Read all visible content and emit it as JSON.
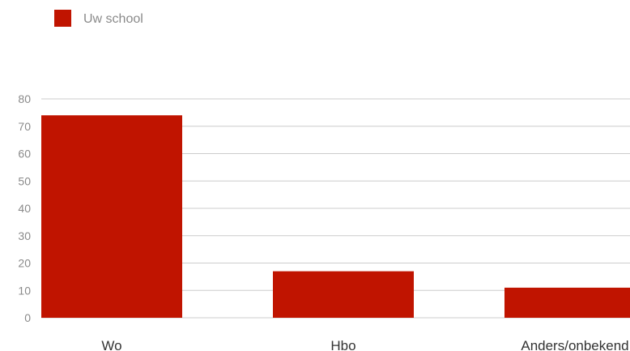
{
  "chart_data": {
    "type": "bar",
    "categories": [
      "Wo",
      "Hbo",
      "Anders/onbekend"
    ],
    "series": [
      {
        "name": "Uw school",
        "values": [
          74,
          17,
          11
        ],
        "color": "#c01400"
      }
    ],
    "yticks": [
      "0",
      "10",
      "20",
      "30",
      "40",
      "50",
      "60",
      "70",
      "80"
    ],
    "ylim": [
      0,
      80
    ],
    "grid": true,
    "legend": "top-left",
    "gridline_color": "#cccccc"
  }
}
